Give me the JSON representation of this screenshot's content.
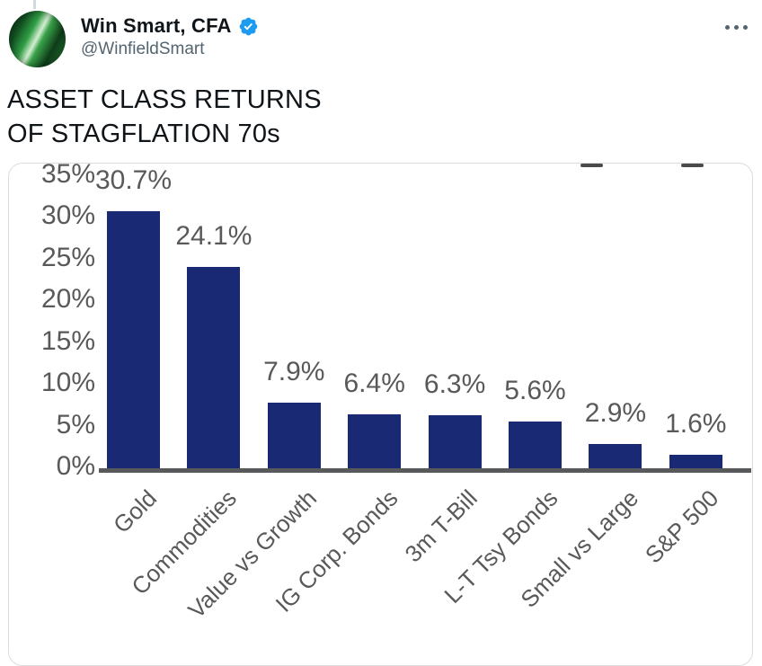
{
  "tweet": {
    "display_name": "Win Smart, CFA",
    "handle": "@WinfieldSmart",
    "verified": true,
    "text_lines": [
      "ASSET CLASS RETURNS",
      "OF STAGFLATION 70s"
    ]
  },
  "icons": {
    "verified_badge": "verified-badge-icon",
    "more_menu": "more-horizontal-icon",
    "avatar": "profile-avatar-green-chart"
  },
  "colors": {
    "bar": "#1a2973",
    "axis": "#58595b",
    "chart_text": "#595959",
    "badge_blue": "#1d9bf0",
    "handle_gray": "#536471",
    "name_black": "#0f1419",
    "card_border": "#dcdcdc"
  },
  "chart_data": {
    "type": "bar",
    "title": "ASSET CLASS RETURNS OF STAGFLATION 70s",
    "categories": [
      "Gold",
      "Commodities",
      "Value vs Growth",
      "IG Corp. Bonds",
      "3m T-Bill",
      "L-T Tsy Bonds",
      "Small vs Large",
      "S&P 500"
    ],
    "values": [
      30.7,
      24.1,
      7.9,
      6.4,
      6.3,
      5.6,
      2.9,
      1.6
    ],
    "data_labels": [
      "30.7%",
      "24.1%",
      "7.9%",
      "6.4%",
      "6.3%",
      "5.6%",
      "2.9%",
      "1.6%"
    ],
    "ytick_values": [
      35,
      30,
      25,
      20,
      15,
      10,
      5,
      0
    ],
    "ytick_labels": [
      "35%",
      "30%",
      "25%",
      "20%",
      "15%",
      "10%",
      "5%",
      "0%"
    ],
    "ylim": [
      0,
      35
    ],
    "xlabel": "",
    "ylabel": "",
    "grid": false,
    "legend": "none",
    "bar_color": "#1a2973"
  }
}
